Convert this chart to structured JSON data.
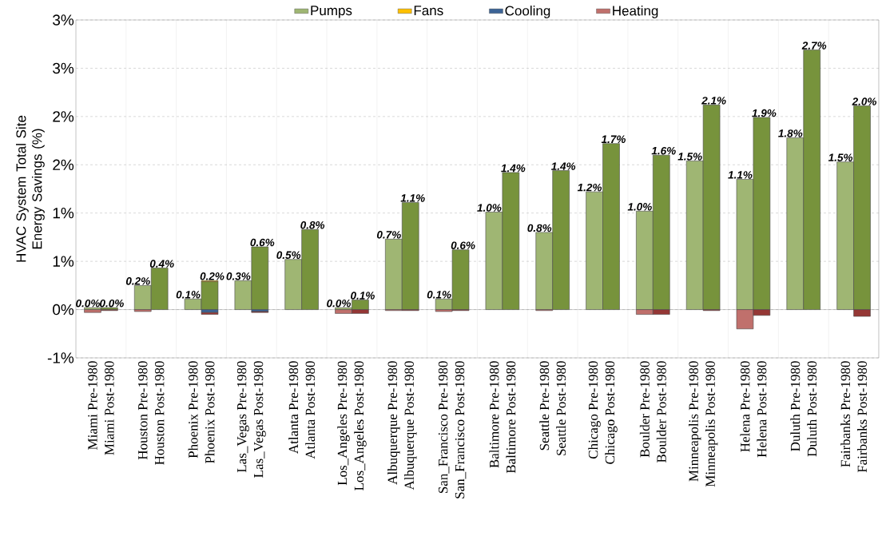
{
  "chart_data": {
    "type": "bar",
    "stacked": true,
    "ylabel": "HVAC System Total Site Energy   Savings (%)",
    "categories": [
      "Miami Pre-1980",
      "Miami Post-1980",
      "Houston Pre-1980",
      "Houston Post-1980",
      "Phoenix Pre-1980",
      "Phoenix Post-1980",
      "Las_Vegas Pre-1980",
      "Las_Vegas Post-1980",
      "Atlanta Pre-1980",
      "Atlanta Post-1980",
      "Los_Angeles Pre-1980",
      "Los_Angeles Post-1980",
      "Albuquerque Pre-1980",
      "Albuquerque Post-1980",
      "San_Francisco Pre-1980",
      "San_Francisco Post-1980",
      "Baltimore Pre-1980",
      "Baltimore Post-1980",
      "Seattle Pre-1980",
      "Seattle Post-1980",
      "Chicago Pre-1980",
      "Chicago Post-1980",
      "Boulder Pre-1980",
      "Boulder Post-1980",
      "Minneapolis Pre-1980",
      "Minneapolis Post-1980",
      "Helena Pre-1980",
      "Helena Post-1980",
      "Duluth Pre-1980",
      "Duluth Post-1980",
      "Fairbanks Pre-1980",
      "Fairbanks Post-1980"
    ],
    "series": [
      {
        "name": "Pumps",
        "colors": [
          "#9fb673",
          "#77933c",
          "#9fb673",
          "#77933c",
          "#9fb673",
          "#77933c",
          "#9fb673",
          "#77933c",
          "#9fb673",
          "#77933c",
          "#9fb673",
          "#77933c",
          "#9fb673",
          "#77933c",
          "#9fb673",
          "#77933c",
          "#9fb673",
          "#77933c",
          "#9fb673",
          "#77933c",
          "#9fb673",
          "#77933c",
          "#9fb673",
          "#77933c",
          "#9fb673",
          "#77933c",
          "#9fb673",
          "#77933c",
          "#9fb673",
          "#77933c",
          "#9fb673",
          "#77933c"
        ],
        "values": [
          0.02,
          0.02,
          0.25,
          0.43,
          0.11,
          0.29,
          0.3,
          0.65,
          0.52,
          0.83,
          0.02,
          0.1,
          0.73,
          1.11,
          0.11,
          0.62,
          1.01,
          1.42,
          0.8,
          1.44,
          1.22,
          1.72,
          1.02,
          1.6,
          1.54,
          2.12,
          1.35,
          1.99,
          1.78,
          2.69,
          1.53,
          2.11
        ]
      },
      {
        "name": "Fans",
        "colors": [
          "#ffd24d",
          "#ffc000",
          "#ffd24d",
          "#ffc000",
          "#ffd24d",
          "#ffc000",
          "#ffd24d",
          "#ffc000",
          "#ffd24d",
          "#ffc000",
          "#ffd24d",
          "#ffc000",
          "#ffd24d",
          "#ffc000",
          "#ffd24d",
          "#ffc000",
          "#ffd24d",
          "#ffc000",
          "#ffd24d",
          "#ffc000",
          "#ffd24d",
          "#ffc000",
          "#ffd24d",
          "#ffc000",
          "#ffd24d",
          "#ffc000",
          "#ffd24d",
          "#ffc000",
          "#ffd24d",
          "#ffc000",
          "#ffd24d",
          "#ffc000"
        ],
        "values": [
          0,
          0,
          0,
          0,
          0,
          0.01,
          0,
          0,
          0,
          0,
          0,
          0,
          0,
          0,
          0,
          0,
          0,
          0,
          0,
          0,
          0,
          0,
          0,
          0,
          0,
          0,
          0,
          0,
          0,
          0,
          0,
          0
        ]
      },
      {
        "name": "Cooling",
        "colors": [
          "#7f9fc8",
          "#3c6496",
          "#7f9fc8",
          "#3c6496",
          "#7f9fc8",
          "#3c6496",
          "#7f9fc8",
          "#3c6496",
          "#7f9fc8",
          "#3c6496",
          "#7f9fc8",
          "#3c6496",
          "#7f9fc8",
          "#3c6496",
          "#7f9fc8",
          "#3c6496",
          "#7f9fc8",
          "#3c6496",
          "#7f9fc8",
          "#3c6496",
          "#7f9fc8",
          "#3c6496",
          "#7f9fc8",
          "#3c6496",
          "#7f9fc8",
          "#3c6496",
          "#7f9fc8",
          "#3c6496",
          "#7f9fc8",
          "#3c6496",
          "#7f9fc8",
          "#3c6496"
        ],
        "values": [
          null,
          0,
          0,
          0,
          0,
          -0.03,
          0,
          -0.02,
          0,
          0,
          0,
          0,
          0,
          0,
          0,
          0,
          0,
          0,
          0,
          0,
          0,
          0,
          0,
          0,
          0,
          0,
          0,
          0,
          0,
          0,
          0,
          0
        ]
      },
      {
        "name": "Heating",
        "colors": [
          "#c0706c",
          "#953735",
          "#c0706c",
          "#953735",
          "#c0706c",
          "#953735",
          "#c0706c",
          "#953735",
          "#c0706c",
          "#953735",
          "#c0706c",
          "#953735",
          "#c0706c",
          "#953735",
          "#c0706c",
          "#953735",
          "#c0706c",
          "#953735",
          "#c0706c",
          "#953735",
          "#c0706c",
          "#953735",
          "#c0706c",
          "#953735",
          "#c0706c",
          "#953735",
          "#c0706c",
          "#953735",
          "#c0706c",
          "#953735",
          "#c0706c",
          "#953735"
        ],
        "values": [
          -0.03,
          -0.01,
          -0.02,
          0,
          0,
          -0.02,
          0,
          -0.01,
          0,
          0,
          -0.04,
          -0.04,
          -0.01,
          -0.01,
          -0.02,
          -0.01,
          0,
          0,
          -0.01,
          0,
          0,
          0,
          -0.05,
          -0.05,
          0,
          -0.01,
          -0.2,
          -0.06,
          0,
          0,
          0,
          -0.07
        ]
      }
    ],
    "totals": [
      "0.0%",
      "0.0%",
      "0.2%",
      "0.4%",
      "0.1%",
      "0.2%",
      "0.3%",
      "0.6%",
      "0.5%",
      "0.8%",
      "0.0%",
      "0.1%",
      "0.7%",
      "1.1%",
      "0.1%",
      "0.6%",
      "1.0%",
      "1.4%",
      "0.8%",
      "1.4%",
      "1.2%",
      "1.7%",
      "1.0%",
      "1.6%",
      "1.5%",
      "2.1%",
      "1.1%",
      "1.9%",
      "1.8%",
      "2.7%",
      "1.5%",
      "2.0%"
    ],
    "ylim": [
      -0.5,
      3.0
    ],
    "yticks": [
      {
        "value": -0.5,
        "label": "-1%"
      },
      {
        "value": 0,
        "label": "0%"
      },
      {
        "value": 0.5,
        "label": "1%"
      },
      {
        "value": 1.0,
        "label": "1%"
      },
      {
        "value": 1.5,
        "label": "2%"
      },
      {
        "value": 2.0,
        "label": "2%"
      },
      {
        "value": 2.5,
        "label": "3%"
      },
      {
        "value": 3.0,
        "label": "3%"
      }
    ],
    "grid": true,
    "legend": "top"
  }
}
